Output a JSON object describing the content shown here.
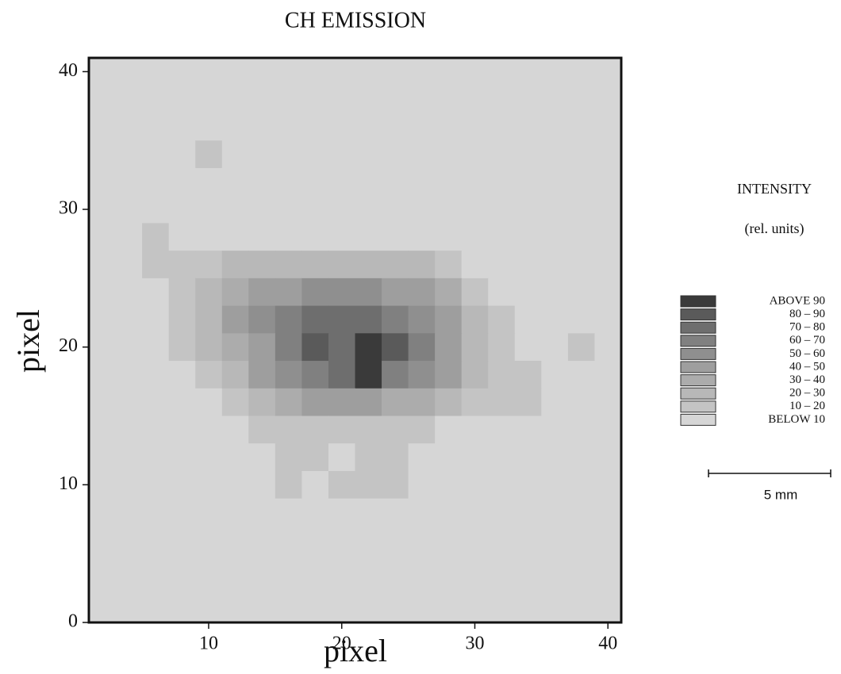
{
  "chart_data": {
    "type": "heatmap",
    "title": "CH EMISSION",
    "x_label": "pixel",
    "y_label": "pixel",
    "xlim": [
      1,
      41
    ],
    "ylim": [
      0,
      41
    ],
    "xticks": [
      10,
      20,
      30,
      40
    ],
    "yticks": [
      0,
      10,
      20,
      30,
      40
    ],
    "x": [
      2,
      4,
      6,
      8,
      10,
      12,
      14,
      16,
      18,
      20,
      22,
      24,
      26,
      28,
      30,
      32,
      34,
      36,
      38,
      40
    ],
    "y": [
      40,
      38,
      36,
      34,
      32,
      30,
      28,
      26,
      24,
      22,
      20,
      18,
      16,
      14,
      12,
      10,
      8,
      6,
      4,
      2
    ],
    "z": [
      [
        5,
        5,
        5,
        5,
        5,
        5,
        5,
        5,
        5,
        5,
        5,
        5,
        5,
        5,
        5,
        5,
        5,
        5,
        5,
        5
      ],
      [
        5,
        5,
        5,
        5,
        5,
        5,
        5,
        5,
        5,
        5,
        5,
        5,
        5,
        5,
        5,
        5,
        5,
        5,
        5,
        5
      ],
      [
        5,
        5,
        5,
        5,
        5,
        5,
        5,
        5,
        5,
        5,
        5,
        5,
        5,
        5,
        5,
        5,
        5,
        5,
        5,
        5
      ],
      [
        5,
        5,
        5,
        5,
        15,
        5,
        5,
        5,
        5,
        5,
        5,
        5,
        5,
        5,
        5,
        5,
        5,
        5,
        5,
        5
      ],
      [
        5,
        5,
        5,
        5,
        5,
        5,
        5,
        5,
        5,
        5,
        5,
        5,
        5,
        5,
        5,
        5,
        5,
        5,
        5,
        5
      ],
      [
        5,
        5,
        5,
        5,
        5,
        5,
        5,
        5,
        5,
        5,
        5,
        5,
        5,
        5,
        5,
        5,
        5,
        5,
        5,
        5
      ],
      [
        5,
        5,
        15,
        5,
        5,
        5,
        5,
        5,
        5,
        5,
        5,
        5,
        5,
        5,
        5,
        5,
        5,
        5,
        5,
        5
      ],
      [
        5,
        5,
        15,
        15,
        15,
        25,
        25,
        25,
        25,
        25,
        25,
        25,
        25,
        15,
        5,
        5,
        5,
        5,
        5,
        5
      ],
      [
        5,
        5,
        5,
        15,
        25,
        35,
        45,
        45,
        55,
        55,
        55,
        45,
        45,
        35,
        15,
        5,
        5,
        5,
        5,
        5
      ],
      [
        5,
        5,
        5,
        15,
        25,
        45,
        55,
        65,
        75,
        75,
        75,
        65,
        55,
        45,
        25,
        15,
        5,
        5,
        5,
        5
      ],
      [
        5,
        5,
        5,
        15,
        25,
        35,
        45,
        65,
        85,
        75,
        95,
        85,
        65,
        45,
        25,
        15,
        5,
        5,
        15,
        5
      ],
      [
        5,
        5,
        5,
        5,
        15,
        25,
        45,
        55,
        65,
        75,
        95,
        65,
        55,
        45,
        25,
        15,
        15,
        5,
        5,
        5
      ],
      [
        5,
        5,
        5,
        5,
        5,
        15,
        25,
        35,
        45,
        45,
        45,
        35,
        35,
        25,
        15,
        15,
        15,
        5,
        5,
        5
      ],
      [
        5,
        5,
        5,
        5,
        5,
        5,
        15,
        15,
        15,
        15,
        15,
        15,
        15,
        5,
        5,
        5,
        5,
        5,
        5,
        5
      ],
      [
        5,
        5,
        5,
        5,
        5,
        5,
        5,
        15,
        15,
        5,
        15,
        15,
        5,
        5,
        5,
        5,
        5,
        5,
        5,
        5
      ],
      [
        5,
        5,
        5,
        5,
        5,
        5,
        5,
        15,
        5,
        15,
        15,
        15,
        5,
        5,
        5,
        5,
        5,
        5,
        5,
        5
      ],
      [
        5,
        5,
        5,
        5,
        5,
        5,
        5,
        5,
        5,
        5,
        5,
        5,
        5,
        5,
        5,
        5,
        5,
        5,
        5,
        5
      ],
      [
        5,
        5,
        5,
        5,
        5,
        5,
        5,
        5,
        5,
        5,
        5,
        5,
        5,
        5,
        5,
        5,
        5,
        5,
        5,
        5
      ],
      [
        5,
        5,
        5,
        5,
        5,
        5,
        5,
        5,
        5,
        5,
        5,
        5,
        5,
        5,
        5,
        5,
        5,
        5,
        5,
        5
      ],
      [
        5,
        5,
        5,
        5,
        5,
        5,
        5,
        5,
        5,
        5,
        5,
        5,
        5,
        5,
        5,
        5,
        5,
        5,
        5,
        5
      ]
    ],
    "levels": [
      10,
      20,
      30,
      40,
      50,
      60,
      70,
      80,
      90
    ],
    "legend_title": "INTENSITY",
    "legend_subtitle": "(rel. units)",
    "legend": [
      {
        "label": "ABOVE 90",
        "color": "#3a3a3a"
      },
      {
        "label": "80 – 90",
        "color": "#5a5a5a"
      },
      {
        "label": "70 – 80",
        "color": "#6e6e6e"
      },
      {
        "label": "60 – 70",
        "color": "#808080"
      },
      {
        "label": "50 – 60",
        "color": "#8f8f8f"
      },
      {
        "label": "40 – 50",
        "color": "#9e9e9e"
      },
      {
        "label": "30 – 40",
        "color": "#acacac"
      },
      {
        "label": "20 – 30",
        "color": "#b8b8b8"
      },
      {
        "label": "10 – 20",
        "color": "#c4c4c4"
      },
      {
        "label": "BELOW 10",
        "color": "#d6d6d6"
      }
    ],
    "scale_bar_label": "5 mm"
  }
}
